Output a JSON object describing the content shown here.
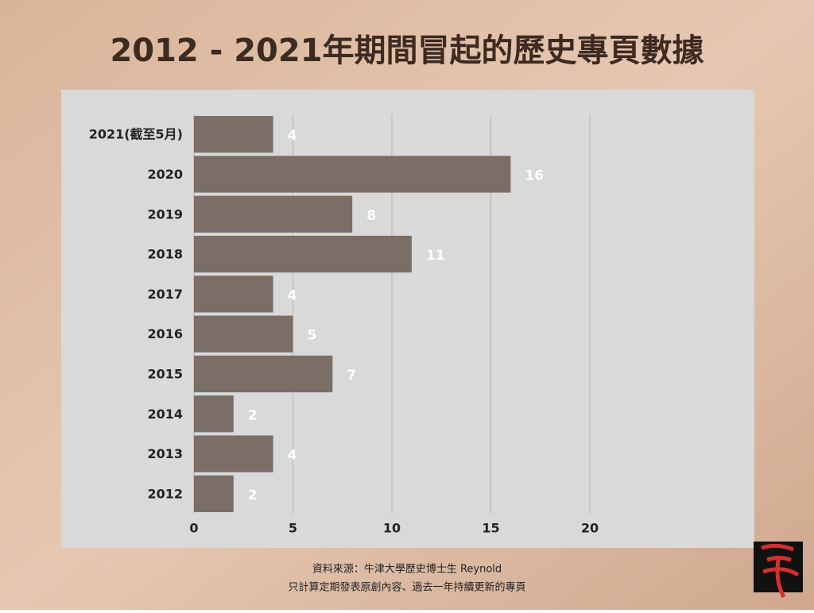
{
  "chart_data": {
    "type": "hbar",
    "title": "2012 - 2021年期間冒起的歷史專頁數據",
    "categories": [
      "2021(截至5月)",
      "2020",
      "2019",
      "2018",
      "2017",
      "2016",
      "2015",
      "2014",
      "2013",
      "2012"
    ],
    "values": [
      4,
      16,
      8,
      11,
      4,
      5,
      7,
      2,
      4,
      2
    ],
    "color": "#7a6e66",
    "xlim": [
      0,
      20
    ],
    "xticks": [
      0,
      5,
      10,
      15,
      20
    ],
    "grid": true,
    "footnotes": [
      "資料來源：牛津大學歷史博士生 Reynold",
      "只計算定期發表原創內容、過去一年持續更新的專頁"
    ]
  }
}
